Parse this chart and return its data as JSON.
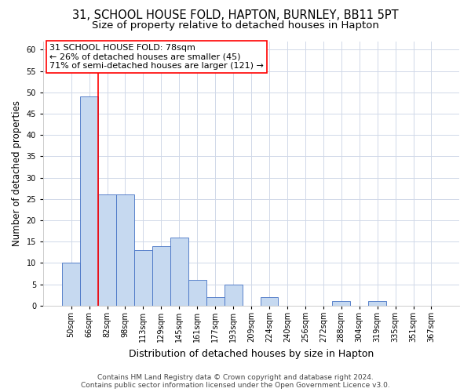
{
  "title": "31, SCHOOL HOUSE FOLD, HAPTON, BURNLEY, BB11 5PT",
  "subtitle": "Size of property relative to detached houses in Hapton",
  "xlabel": "Distribution of detached houses by size in Hapton",
  "ylabel": "Number of detached properties",
  "bin_labels": [
    "50sqm",
    "66sqm",
    "82sqm",
    "98sqm",
    "113sqm",
    "129sqm",
    "145sqm",
    "161sqm",
    "177sqm",
    "193sqm",
    "209sqm",
    "224sqm",
    "240sqm",
    "256sqm",
    "272sqm",
    "288sqm",
    "304sqm",
    "319sqm",
    "335sqm",
    "351sqm",
    "367sqm"
  ],
  "bar_heights": [
    10,
    49,
    26,
    26,
    13,
    14,
    16,
    6,
    2,
    5,
    0,
    2,
    0,
    0,
    0,
    1,
    0,
    1,
    0,
    0,
    0
  ],
  "bar_color": "#c6d9f0",
  "bar_edge_color": "#4472c4",
  "ylim": [
    0,
    62
  ],
  "yticks": [
    0,
    5,
    10,
    15,
    20,
    25,
    30,
    35,
    40,
    45,
    50,
    55,
    60
  ],
  "annotation_line1": "31 SCHOOL HOUSE FOLD: 78sqm",
  "annotation_line2": "← 26% of detached houses are smaller (45)",
  "annotation_line3": "71% of semi-detached houses are larger (121) →",
  "footer_line1": "Contains HM Land Registry data © Crown copyright and database right 2024.",
  "footer_line2": "Contains public sector information licensed under the Open Government Licence v3.0.",
  "background_color": "#ffffff",
  "grid_color": "#d0d8e8",
  "title_fontsize": 10.5,
  "subtitle_fontsize": 9.5,
  "ylabel_fontsize": 8.5,
  "xlabel_fontsize": 9,
  "tick_fontsize": 7,
  "ann_fontsize": 8,
  "footer_fontsize": 6.5
}
